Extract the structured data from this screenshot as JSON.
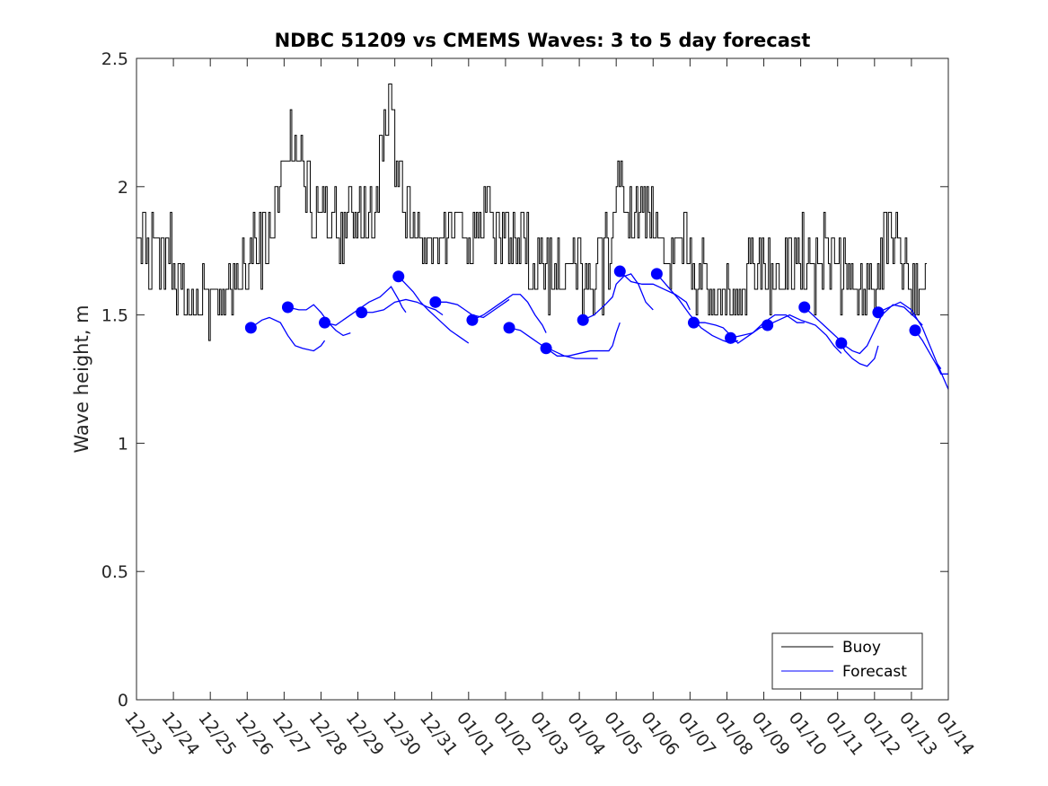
{
  "chart_data": {
    "type": "line",
    "title": "NDBC 51209 vs CMEMS Waves: 3 to 5 day forecast",
    "xlabel": "",
    "ylabel": "Wave height, m",
    "ylim": [
      0,
      2.5
    ],
    "xlim": [
      0,
      22
    ],
    "x_tick_labels": [
      "12/23",
      "12/24",
      "12/25",
      "12/26",
      "12/27",
      "12/28",
      "12/29",
      "12/30",
      "12/31",
      "01/01",
      "01/02",
      "01/03",
      "01/04",
      "01/05",
      "01/06",
      "01/07",
      "01/08",
      "01/09",
      "01/10",
      "01/11",
      "01/12",
      "01/13",
      "01/14"
    ],
    "y_ticks": [
      0,
      0.5,
      1,
      1.5,
      2,
      2.5
    ],
    "y_tick_labels": [
      "0",
      "0.5",
      "1",
      "1.5",
      "2",
      "2.5"
    ],
    "legend": {
      "position": "bottom-right",
      "entries": [
        {
          "label": "Buoy",
          "color": "#000000"
        },
        {
          "label": "Forecast",
          "color": "#0000ff"
        }
      ]
    },
    "x_units": "days since 12/23",
    "buoy": {
      "name": "Buoy",
      "color": "#000000",
      "anchors": [
        [
          0.0,
          1.8
        ],
        [
          0.3,
          1.75
        ],
        [
          0.6,
          1.75
        ],
        [
          0.9,
          1.7
        ],
        [
          1.1,
          1.7
        ],
        [
          1.3,
          1.6
        ],
        [
          1.5,
          1.55
        ],
        [
          1.8,
          1.45
        ],
        [
          2.1,
          1.45
        ],
        [
          2.3,
          1.5
        ],
        [
          2.5,
          1.6
        ],
        [
          2.8,
          1.65
        ],
        [
          3.1,
          1.75
        ],
        [
          3.4,
          1.8
        ],
        [
          3.7,
          1.85
        ],
        [
          3.9,
          2.0
        ],
        [
          4.1,
          2.2
        ],
        [
          4.3,
          2.1
        ],
        [
          4.5,
          2.05
        ],
        [
          4.7,
          1.95
        ],
        [
          4.9,
          1.9
        ],
        [
          5.1,
          1.95
        ],
        [
          5.3,
          1.9
        ],
        [
          5.5,
          1.8
        ],
        [
          5.7,
          1.85
        ],
        [
          5.9,
          1.95
        ],
        [
          6.1,
          1.9
        ],
        [
          6.3,
          1.85
        ],
        [
          6.5,
          1.95
        ],
        [
          6.7,
          2.2
        ],
        [
          6.9,
          2.3
        ],
        [
          7.1,
          2.0
        ],
        [
          7.3,
          1.9
        ],
        [
          7.5,
          1.8
        ],
        [
          7.7,
          1.75
        ],
        [
          7.9,
          1.8
        ],
        [
          8.1,
          1.75
        ],
        [
          8.3,
          1.8
        ],
        [
          8.6,
          1.85
        ],
        [
          8.9,
          1.8
        ],
        [
          9.1,
          1.8
        ],
        [
          9.4,
          1.85
        ],
        [
          9.7,
          1.85
        ],
        [
          10.0,
          1.8
        ],
        [
          10.3,
          1.8
        ],
        [
          10.6,
          1.75
        ],
        [
          10.9,
          1.7
        ],
        [
          11.2,
          1.7
        ],
        [
          11.5,
          1.75
        ],
        [
          11.8,
          1.7
        ],
        [
          12.0,
          1.65
        ],
        [
          12.3,
          1.6
        ],
        [
          12.6,
          1.7
        ],
        [
          12.9,
          1.85
        ],
        [
          13.1,
          2.0
        ],
        [
          13.3,
          1.95
        ],
        [
          13.5,
          1.9
        ],
        [
          13.8,
          1.85
        ],
        [
          14.1,
          1.9
        ],
        [
          14.3,
          1.8
        ],
        [
          14.5,
          1.7
        ],
        [
          14.8,
          1.8
        ],
        [
          15.0,
          1.7
        ],
        [
          15.3,
          1.6
        ],
        [
          15.6,
          1.6
        ],
        [
          15.9,
          1.65
        ],
        [
          16.2,
          1.6
        ],
        [
          16.5,
          1.65
        ],
        [
          16.8,
          1.7
        ],
        [
          17.1,
          1.7
        ],
        [
          17.4,
          1.65
        ],
        [
          17.7,
          1.7
        ],
        [
          18.0,
          1.65
        ],
        [
          18.3,
          1.7
        ],
        [
          18.6,
          1.75
        ],
        [
          18.9,
          1.7
        ],
        [
          19.2,
          1.65
        ],
        [
          19.5,
          1.6
        ],
        [
          19.8,
          1.6
        ],
        [
          20.1,
          1.7
        ],
        [
          20.4,
          1.8
        ],
        [
          20.7,
          1.75
        ],
        [
          21.0,
          1.65
        ],
        [
          21.3,
          1.55
        ]
      ],
      "x_start": 0.0,
      "x_end": 21.4,
      "samples_per_day": 24,
      "step": 0.1,
      "min": 1.4,
      "max": 2.4
    },
    "forecast": {
      "name": "Forecast",
      "color": "#0000ff",
      "segments": [
        [
          [
            3.1,
            1.45
          ],
          [
            3.4,
            1.48
          ],
          [
            3.6,
            1.49
          ],
          [
            3.9,
            1.47
          ],
          [
            4.1,
            1.42
          ],
          [
            4.3,
            1.38
          ],
          [
            4.5,
            1.37
          ],
          [
            4.8,
            1.36
          ],
          [
            5.0,
            1.38
          ],
          [
            5.1,
            1.4
          ]
        ],
        [
          [
            4.1,
            1.53
          ],
          [
            4.4,
            1.52
          ],
          [
            4.6,
            1.52
          ],
          [
            4.8,
            1.54
          ],
          [
            5.0,
            1.51
          ],
          [
            5.2,
            1.47
          ],
          [
            5.4,
            1.44
          ],
          [
            5.6,
            1.42
          ],
          [
            5.8,
            1.43
          ]
        ],
        [
          [
            5.1,
            1.47
          ],
          [
            5.4,
            1.46
          ],
          [
            5.7,
            1.49
          ],
          [
            6.0,
            1.52
          ],
          [
            6.3,
            1.55
          ],
          [
            6.6,
            1.57
          ],
          [
            6.9,
            1.61
          ],
          [
            7.1,
            1.56
          ],
          [
            7.2,
            1.53
          ],
          [
            7.3,
            1.51
          ]
        ],
        [
          [
            6.1,
            1.51
          ],
          [
            6.4,
            1.51
          ],
          [
            6.7,
            1.52
          ],
          [
            7.0,
            1.55
          ],
          [
            7.3,
            1.56
          ],
          [
            7.6,
            1.55
          ],
          [
            7.9,
            1.53
          ],
          [
            8.1,
            1.52
          ],
          [
            8.3,
            1.5
          ]
        ],
        [
          [
            7.1,
            1.65
          ],
          [
            7.3,
            1.62
          ],
          [
            7.5,
            1.59
          ],
          [
            7.7,
            1.55
          ],
          [
            7.9,
            1.52
          ],
          [
            8.2,
            1.48
          ],
          [
            8.5,
            1.44
          ],
          [
            8.8,
            1.41
          ],
          [
            9.0,
            1.39
          ]
        ],
        [
          [
            8.1,
            1.55
          ],
          [
            8.4,
            1.55
          ],
          [
            8.7,
            1.54
          ],
          [
            8.9,
            1.52
          ],
          [
            9.1,
            1.5
          ],
          [
            9.4,
            1.49
          ],
          [
            9.7,
            1.52
          ],
          [
            10.0,
            1.55
          ],
          [
            10.1,
            1.56
          ]
        ],
        [
          [
            9.1,
            1.48
          ],
          [
            9.4,
            1.5
          ],
          [
            9.7,
            1.53
          ],
          [
            10.0,
            1.56
          ],
          [
            10.2,
            1.58
          ],
          [
            10.4,
            1.58
          ],
          [
            10.6,
            1.55
          ],
          [
            10.8,
            1.5
          ],
          [
            11.0,
            1.46
          ],
          [
            11.1,
            1.43
          ]
        ],
        [
          [
            10.1,
            1.45
          ],
          [
            10.4,
            1.44
          ],
          [
            10.7,
            1.41
          ],
          [
            11.0,
            1.38
          ],
          [
            11.3,
            1.36
          ],
          [
            11.6,
            1.34
          ],
          [
            11.9,
            1.33
          ],
          [
            12.1,
            1.33
          ],
          [
            12.3,
            1.33
          ],
          [
            12.5,
            1.33
          ]
        ],
        [
          [
            11.1,
            1.37
          ],
          [
            11.4,
            1.34
          ],
          [
            11.7,
            1.34
          ],
          [
            12.0,
            1.35
          ],
          [
            12.3,
            1.36
          ],
          [
            12.6,
            1.36
          ],
          [
            12.8,
            1.36
          ],
          [
            12.9,
            1.38
          ],
          [
            13.0,
            1.43
          ],
          [
            13.1,
            1.47
          ]
        ],
        [
          [
            12.1,
            1.48
          ],
          [
            12.4,
            1.5
          ],
          [
            12.7,
            1.54
          ],
          [
            12.9,
            1.57
          ],
          [
            13.0,
            1.62
          ],
          [
            13.2,
            1.65
          ],
          [
            13.4,
            1.66
          ],
          [
            13.6,
            1.62
          ],
          [
            13.8,
            1.55
          ],
          [
            14.0,
            1.52
          ]
        ],
        [
          [
            13.1,
            1.67
          ],
          [
            13.4,
            1.63
          ],
          [
            13.7,
            1.62
          ],
          [
            14.0,
            1.62
          ],
          [
            14.3,
            1.6
          ],
          [
            14.6,
            1.58
          ],
          [
            14.9,
            1.55
          ],
          [
            15.0,
            1.52
          ]
        ],
        [
          [
            14.1,
            1.66
          ],
          [
            14.4,
            1.61
          ],
          [
            14.7,
            1.56
          ],
          [
            15.0,
            1.5
          ],
          [
            15.3,
            1.45
          ],
          [
            15.6,
            1.42
          ],
          [
            15.9,
            1.4
          ],
          [
            16.1,
            1.39
          ],
          [
            16.3,
            1.4
          ]
        ],
        [
          [
            15.1,
            1.47
          ],
          [
            15.4,
            1.47
          ],
          [
            15.7,
            1.46
          ],
          [
            15.9,
            1.45
          ],
          [
            16.1,
            1.42
          ],
          [
            16.3,
            1.39
          ],
          [
            16.6,
            1.42
          ],
          [
            16.9,
            1.45
          ],
          [
            17.1,
            1.46
          ]
        ],
        [
          [
            16.1,
            1.41
          ],
          [
            16.4,
            1.42
          ],
          [
            16.7,
            1.43
          ],
          [
            17.0,
            1.47
          ],
          [
            17.3,
            1.5
          ],
          [
            17.6,
            1.5
          ],
          [
            17.9,
            1.47
          ],
          [
            18.1,
            1.47
          ]
        ],
        [
          [
            17.1,
            1.46
          ],
          [
            17.4,
            1.48
          ],
          [
            17.7,
            1.5
          ],
          [
            18.0,
            1.48
          ],
          [
            18.2,
            1.47
          ],
          [
            18.4,
            1.46
          ],
          [
            18.7,
            1.42
          ],
          [
            18.9,
            1.38
          ],
          [
            19.1,
            1.35
          ]
        ],
        [
          [
            18.1,
            1.53
          ],
          [
            18.4,
            1.49
          ],
          [
            18.7,
            1.45
          ],
          [
            19.0,
            1.41
          ],
          [
            19.2,
            1.36
          ],
          [
            19.4,
            1.33
          ],
          [
            19.6,
            1.31
          ],
          [
            19.8,
            1.3
          ],
          [
            20.0,
            1.33
          ],
          [
            20.1,
            1.38
          ]
        ],
        [
          [
            19.1,
            1.39
          ],
          [
            19.4,
            1.36
          ],
          [
            19.6,
            1.35
          ],
          [
            19.8,
            1.38
          ],
          [
            20.0,
            1.44
          ],
          [
            20.2,
            1.5
          ],
          [
            20.5,
            1.54
          ],
          [
            20.8,
            1.53
          ],
          [
            21.1,
            1.49
          ],
          [
            21.3,
            1.46
          ]
        ],
        [
          [
            20.1,
            1.51
          ],
          [
            20.4,
            1.53
          ],
          [
            20.7,
            1.55
          ],
          [
            21.0,
            1.52
          ],
          [
            21.3,
            1.45
          ],
          [
            21.5,
            1.38
          ],
          [
            21.7,
            1.31
          ],
          [
            21.8,
            1.29
          ]
        ],
        [
          [
            21.1,
            1.44
          ],
          [
            21.3,
            1.4
          ],
          [
            21.5,
            1.35
          ],
          [
            21.7,
            1.3
          ],
          [
            21.8,
            1.27
          ],
          [
            22.0,
            1.27
          ]
        ],
        [
          [
            21.7,
            1.31
          ],
          [
            21.85,
            1.26
          ],
          [
            22.0,
            1.21
          ]
        ]
      ],
      "markers": [
        [
          3.1,
          1.45
        ],
        [
          4.1,
          1.53
        ],
        [
          5.1,
          1.47
        ],
        [
          6.1,
          1.51
        ],
        [
          7.1,
          1.65
        ],
        [
          8.1,
          1.55
        ],
        [
          9.1,
          1.48
        ],
        [
          10.1,
          1.45
        ],
        [
          11.1,
          1.37
        ],
        [
          12.1,
          1.48
        ],
        [
          13.1,
          1.67
        ],
        [
          14.1,
          1.66
        ],
        [
          15.1,
          1.47
        ],
        [
          16.1,
          1.41
        ],
        [
          17.1,
          1.46
        ],
        [
          18.1,
          1.53
        ],
        [
          19.1,
          1.39
        ],
        [
          20.1,
          1.51
        ],
        [
          21.1,
          1.44
        ]
      ]
    }
  }
}
